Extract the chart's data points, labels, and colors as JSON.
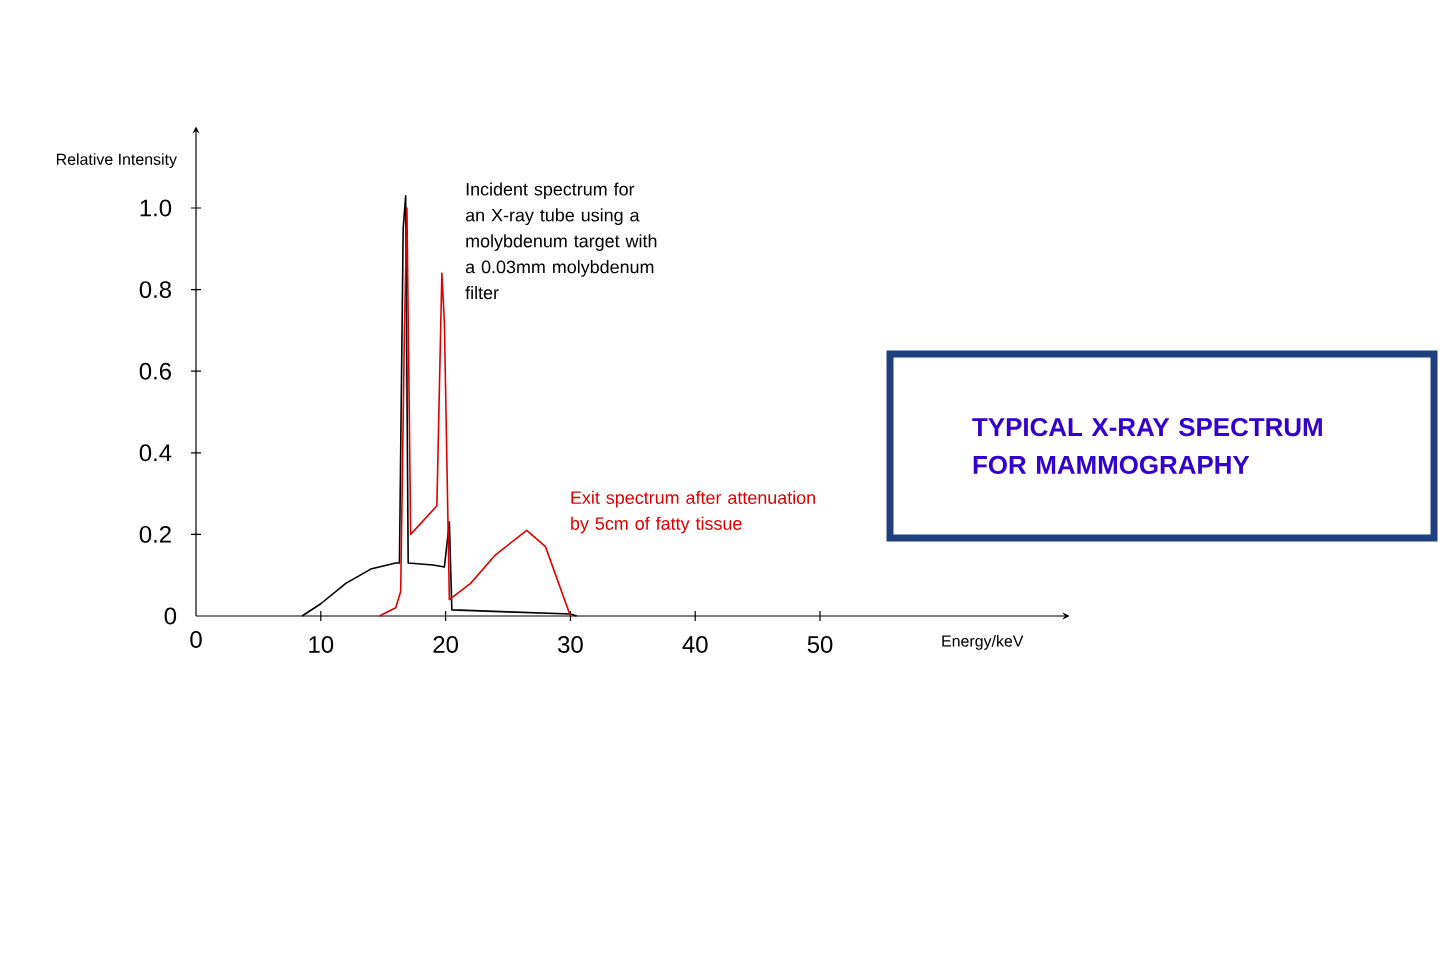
{
  "chart_data": {
    "type": "line",
    "title": "TYPICAL X-RAY SPECTRUM FOR MAMMOGRAPHY",
    "xlabel": "Energy/keV",
    "ylabel": "Relative Intensity",
    "xlim": [
      0,
      70
    ],
    "ylim": [
      0,
      1.2
    ],
    "xticks": [
      0,
      10,
      20,
      30,
      40,
      50
    ],
    "yticks": [
      0,
      0.2,
      0.4,
      0.6,
      0.8,
      {
        "value": 1,
        "label": "1.0"
      }
    ],
    "marker": "none",
    "line_style": "solid",
    "grid": false,
    "series": [
      {
        "name": "Incident spectrum for an X-ray tube using a molybdenum target with a 0.03mm molybdenum filter",
        "color": "#000000",
        "x": [
          8.5,
          10,
          12,
          14,
          16,
          16.3,
          16.6,
          16.8,
          17,
          19,
          19.9,
          20.3,
          20.5,
          25,
          30,
          30.5
        ],
        "values": [
          0,
          0.03,
          0.08,
          0.115,
          0.13,
          0.13,
          0.95,
          1.03,
          0.13,
          0.125,
          0.12,
          0.23,
          0.015,
          0.01,
          0.005,
          0
        ]
      },
      {
        "name": "Exit spectrum after attenuation by 5cm of fatty tissue",
        "color": "#dd0000",
        "x": [
          14.7,
          16,
          16.4,
          16.7,
          16.9,
          17.2,
          19.3,
          19.7,
          19.9,
          20.3,
          22,
          24,
          26.5,
          28,
          30
        ],
        "values": [
          0,
          0.02,
          0.06,
          0.7,
          1.0,
          0.2,
          0.27,
          0.84,
          0.72,
          0.04,
          0.08,
          0.15,
          0.21,
          0.17,
          0
        ]
      }
    ]
  }
}
